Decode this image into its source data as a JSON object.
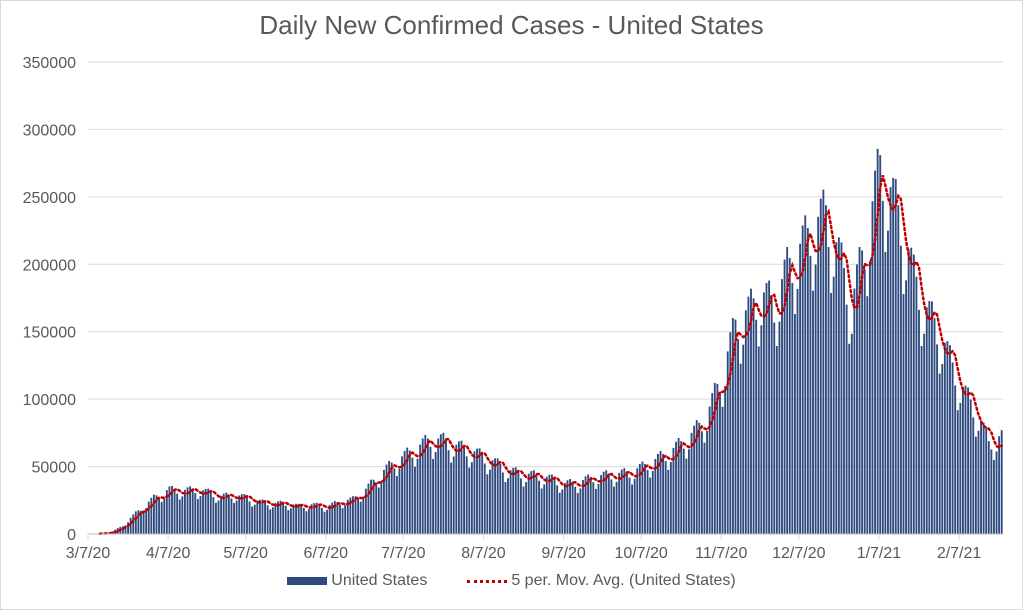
{
  "title": "Daily New Confirmed Cases - United States",
  "colors": {
    "bar": "#2e4a7f",
    "avg": "#c00000",
    "grid": "#d9d9d9",
    "text": "#595959"
  },
  "legend": {
    "bars": "United States",
    "avg": "5 per. Mov. Avg. (United States)"
  },
  "chart_data": {
    "type": "bar",
    "title": "Daily New Confirmed Cases - United States",
    "xlabel": "",
    "ylabel": "",
    "ylim": [
      0,
      350000
    ],
    "y_ticks": [
      "0",
      "50000",
      "100000",
      "150000",
      "200000",
      "250000",
      "300000",
      "350000"
    ],
    "x_ticks": [
      "3/7/20",
      "4/7/20",
      "5/7/20",
      "6/7/20",
      "7/7/20",
      "8/7/20",
      "9/7/20",
      "10/7/20",
      "11/7/20",
      "12/7/20",
      "1/7/21",
      "2/7/21"
    ],
    "x_start": "3/7/20",
    "x_end": "2/23/21",
    "grid": true,
    "legend_position": "bottom",
    "series": [
      {
        "name": "United States",
        "type": "bar",
        "keypoints": [
          [
            "3/7/20",
            0
          ],
          [
            "3/15/20",
            800
          ],
          [
            "3/20/20",
            6000
          ],
          [
            "3/25/20",
            15000
          ],
          [
            "4/1/20",
            26000
          ],
          [
            "4/7/20",
            32000
          ],
          [
            "4/12/20",
            31000
          ],
          [
            "4/17/20",
            32000
          ],
          [
            "4/22/20",
            30000
          ],
          [
            "4/27/20",
            27000
          ],
          [
            "5/2/20",
            28000
          ],
          [
            "5/7/20",
            26000
          ],
          [
            "5/12/20",
            23000
          ],
          [
            "5/17/20",
            22000
          ],
          [
            "5/22/20",
            22000
          ],
          [
            "5/27/20",
            20000
          ],
          [
            "6/1/20",
            21000
          ],
          [
            "6/7/20",
            20000
          ],
          [
            "6/12/20",
            23000
          ],
          [
            "6/17/20",
            25000
          ],
          [
            "6/22/20",
            32000
          ],
          [
            "6/27/20",
            42000
          ],
          [
            "7/2/20",
            50000
          ],
          [
            "7/7/20",
            56000
          ],
          [
            "7/12/20",
            62000
          ],
          [
            "7/17/20",
            68000
          ],
          [
            "7/22/20",
            67000
          ],
          [
            "7/27/20",
            63000
          ],
          [
            "8/1/20",
            60000
          ],
          [
            "8/7/20",
            55000
          ],
          [
            "8/12/20",
            50000
          ],
          [
            "8/17/20",
            45000
          ],
          [
            "8/22/20",
            43000
          ],
          [
            "8/27/20",
            42000
          ],
          [
            "9/1/20",
            40000
          ],
          [
            "9/7/20",
            36000
          ],
          [
            "9/12/20",
            37000
          ],
          [
            "9/17/20",
            40000
          ],
          [
            "9/22/20",
            42000
          ],
          [
            "9/27/20",
            43000
          ],
          [
            "10/2/20",
            44000
          ],
          [
            "10/7/20",
            48000
          ],
          [
            "10/12/20",
            53000
          ],
          [
            "10/17/20",
            58000
          ],
          [
            "10/22/20",
            65000
          ],
          [
            "10/27/20",
            73000
          ],
          [
            "11/1/20",
            85000
          ],
          [
            "11/7/20",
            115000
          ],
          [
            "11/12/20",
            150000
          ],
          [
            "11/17/20",
            160000
          ],
          [
            "11/22/20",
            172000
          ],
          [
            "11/27/20",
            165000
          ],
          [
            "12/2/20",
            190000
          ],
          [
            "12/7/20",
            205000
          ],
          [
            "12/12/20",
            220000
          ],
          [
            "12/17/20",
            230000
          ],
          [
            "12/22/20",
            200000
          ],
          [
            "12/27/20",
            165000
          ],
          [
            "1/2/21",
            215000
          ],
          [
            "1/7/21",
            265000
          ],
          [
            "1/10/21",
            250000
          ],
          [
            "1/15/21",
            225000
          ],
          [
            "1/20/21",
            185000
          ],
          [
            "1/25/21",
            160000
          ],
          [
            "1/30/21",
            145000
          ],
          [
            "2/4/21",
            120000
          ],
          [
            "2/9/21",
            100000
          ],
          [
            "2/14/21",
            85000
          ],
          [
            "2/18/21",
            65000
          ],
          [
            "2/23/21",
            70000
          ]
        ]
      },
      {
        "name": "5 per. Mov. Avg. (United States)",
        "type": "line",
        "style": "dotted"
      }
    ]
  }
}
